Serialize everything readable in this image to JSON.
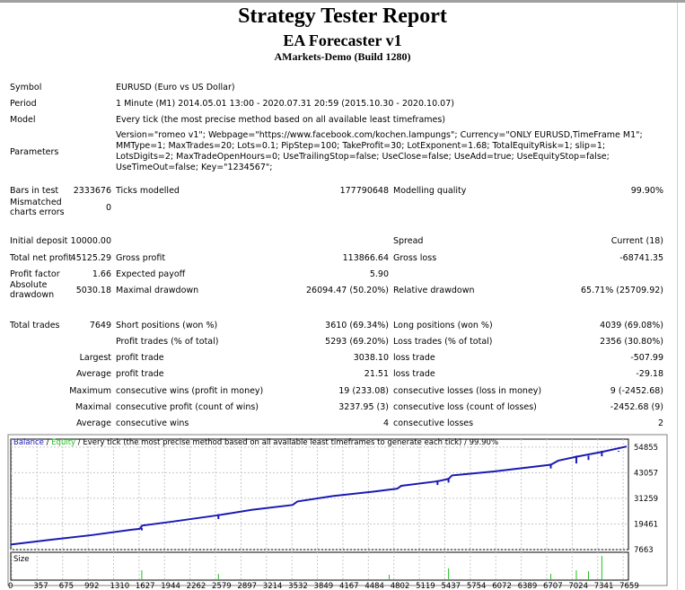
{
  "header": {
    "title": "Strategy Tester Report",
    "ea_name": "EA Forecaster v1",
    "server": "AMarkets-Demo (Build 1280)"
  },
  "info": [
    {
      "label": "Symbol",
      "value": "EURUSD (Euro vs US Dollar)"
    },
    {
      "label": "Period",
      "value": "1 Minute (M1) 2014.05.01 13:00 - 2020.07.31 20:59 (2015.10.30 - 2020.10.07)"
    },
    {
      "label": "Model",
      "value": "Every tick (the most precise method based on all available least timeframes)"
    },
    {
      "label": "Parameters",
      "value": "Version=\"romeo v1\"; Webpage=\"https://www.facebook.com/kochen.lampungs\"; Currency=\"ONLY EURUSD,TimeFrame M1\"; MMType=1; MaxTrades=20; Lots=0.1; PipStep=100; TakeProfit=30; LotExponent=1.68; TotalEquityRisk=1; slip=1; LotsDigits=2; MaxTradeOpenHours=0; UseTrailingStop=false; UseClose=false; UseAdd=true; UseEquityStop=false; UseTimeOut=false; Key=\"1234567\";"
    }
  ],
  "stats": [
    [
      "Bars in test",
      "2333676",
      "Ticks modelled",
      "177790648",
      "Modelling quality",
      "99.90%"
    ],
    [
      "Mismatched charts errors",
      "0",
      "",
      "",
      "",
      ""
    ],
    [
      "Initial deposit",
      "10000.00",
      "",
      "",
      "Spread",
      "Current (18)"
    ],
    [
      "Total net profit",
      "45125.29",
      "Gross profit",
      "113866.64",
      "Gross loss",
      "-68741.35"
    ],
    [
      "Profit factor",
      "1.66",
      "Expected payoff",
      "5.90",
      "",
      ""
    ],
    [
      "Absolute drawdown",
      "5030.18",
      "Maximal drawdown",
      "26094.47 (50.20%)",
      "Relative drawdown",
      "65.71% (25709.92)"
    ],
    [
      "Total trades",
      "7649",
      "Short positions (won %)",
      "3610 (69.34%)",
      "Long positions (won %)",
      "4039 (69.08%)"
    ],
    [
      "",
      "",
      "Profit trades (% of total)",
      "5293 (69.20%)",
      "Loss trades (% of total)",
      "2356 (30.80%)"
    ],
    [
      "",
      "Largest",
      "profit trade",
      "3038.10",
      "loss trade",
      "-507.99"
    ],
    [
      "",
      "Average",
      "profit trade",
      "21.51",
      "loss trade",
      "-29.18"
    ],
    [
      "",
      "Maximum",
      "consecutive wins (profit in money)",
      "19 (233.08)",
      "consecutive losses (loss in money)",
      "9 (-2452.68)"
    ],
    [
      "",
      "Maximal",
      "consecutive profit (count of wins)",
      "3237.95 (3)",
      "consecutive loss (count of losses)",
      "-2452.68 (9)"
    ],
    [
      "",
      "Average",
      "consecutive wins",
      "4",
      "consecutive losses",
      "2"
    ]
  ],
  "chart_data": {
    "type": "line",
    "legend_balance": "Balance",
    "legend_sep": " / ",
    "legend_equity": "Equity",
    "legend_rest": " / Every tick (the most precise method based on all available least timeframes to generate each tick) / 99.90%",
    "size_label": "Size",
    "colors": {
      "balance": "#1a1ab4",
      "equity": "#22c022",
      "size": "#22c022",
      "grid": "#c8c8c8"
    },
    "y_ticks": [
      54855,
      43057,
      31259,
      19461,
      7663
    ],
    "x_ticks": [
      0,
      357,
      675,
      992,
      1310,
      1627,
      1944,
      2262,
      2579,
      2897,
      3214,
      3532,
      3849,
      4167,
      4484,
      4802,
      5119,
      5437,
      5754,
      6072,
      6389,
      6707,
      7024,
      7341,
      7659
    ],
    "ylim": [
      7663,
      58500
    ],
    "xlim": [
      0,
      7649
    ],
    "grid": true,
    "balance": [
      [
        0,
        10000
      ],
      [
        500,
        12200
      ],
      [
        1000,
        14300
      ],
      [
        1500,
        16800
      ],
      [
        1600,
        17200
      ],
      [
        1630,
        18700
      ],
      [
        2000,
        20500
      ],
      [
        2579,
        23500
      ],
      [
        3000,
        26000
      ],
      [
        3500,
        28200
      ],
      [
        3560,
        29800
      ],
      [
        4000,
        32300
      ],
      [
        4500,
        34300
      ],
      [
        4800,
        35700
      ],
      [
        4850,
        37000
      ],
      [
        5300,
        39100
      ],
      [
        5437,
        40200
      ],
      [
        5480,
        41800
      ],
      [
        6000,
        43600
      ],
      [
        6707,
        46700
      ],
      [
        6800,
        48600
      ],
      [
        7024,
        50400
      ],
      [
        7341,
        52600
      ],
      [
        7649,
        55125
      ]
    ],
    "drawdown_spikes": [
      [
        1627,
        16500
      ],
      [
        2579,
        21700
      ],
      [
        5300,
        37400
      ],
      [
        5437,
        38500
      ],
      [
        6707,
        45000
      ],
      [
        7024,
        47300
      ],
      [
        7175,
        48900
      ],
      [
        7341,
        50600
      ],
      [
        7550,
        52700
      ]
    ],
    "size": [
      [
        1627,
        10
      ],
      [
        2579,
        6
      ],
      [
        4700,
        5
      ],
      [
        5437,
        12
      ],
      [
        6707,
        6
      ],
      [
        7024,
        10
      ],
      [
        7175,
        9
      ],
      [
        7341,
        26
      ]
    ]
  }
}
